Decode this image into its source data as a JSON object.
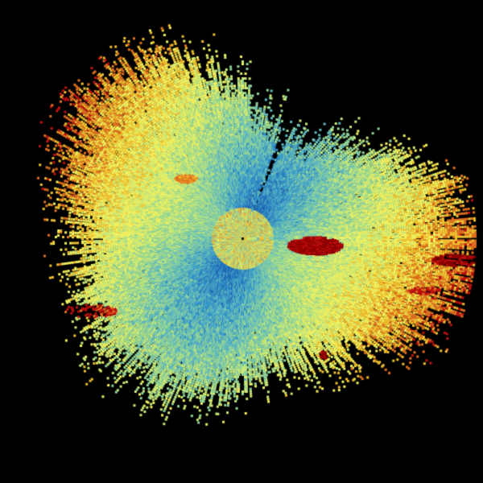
{
  "image": {
    "kind": "radar-ppi",
    "background": "#000000",
    "colormap": [
      "#1f5fb0",
      "#2f8fc8",
      "#5fb8c0",
      "#8fd39a",
      "#c8e878",
      "#f0f060",
      "#f0c030",
      "#e07020",
      "#c01010",
      "#900000"
    ]
  }
}
